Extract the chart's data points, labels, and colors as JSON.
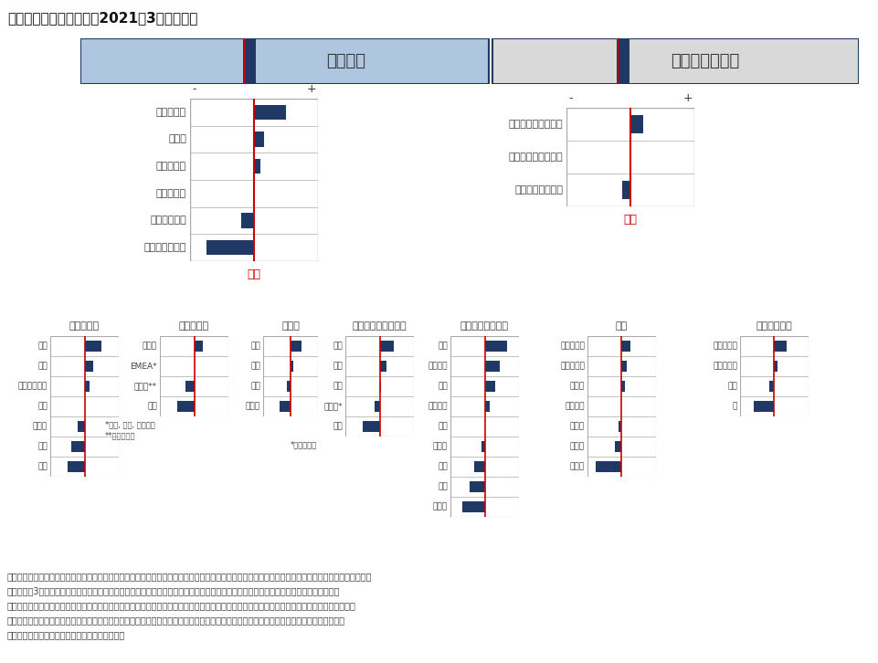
{
  "title": "資産クラスの選好順位（2021年3月末時点）",
  "growth_label": "グロース",
  "defensive_label": "ディフェンシブ",
  "neutral_label": "中立",
  "growth_items": [
    "新興国株式",
    "リート",
    "先進国株式",
    "新興国債券",
    "インフラ投資",
    "ハイイールド債"
  ],
  "growth_scores": [
    1.0,
    0.3,
    0.2,
    0.0,
    -0.4,
    -1.5
  ],
  "defensive_items": [
    "インフレヘッジ資産",
    "投資適格クレジット",
    "先進国ソブリン債"
  ],
  "defensive_scores": [
    0.4,
    0.0,
    -0.25
  ],
  "detail_sections": [
    {
      "title": "先進国株式",
      "items": [
        "日本",
        "欧州",
        "シンガポール",
        "英国",
        "カナダ",
        "豪州",
        "米国"
      ],
      "scores": [
        1.0,
        0.5,
        0.3,
        0.0,
        -0.4,
        -0.8,
        -1.0
      ],
      "notes": []
    },
    {
      "title": "新興国株式",
      "items": [
        "中南米",
        "EMEA*",
        "アジア**",
        "中国"
      ],
      "scores": [
        0.5,
        0.0,
        -0.5,
        -1.0
      ],
      "notes": [
        "*欧州, 中東, アフリカ",
        "**中国を除く"
      ]
    },
    {
      "title": "リート",
      "items": [
        "米国",
        "日本",
        "欧州",
        "アジア"
      ],
      "scores": [
        0.8,
        0.2,
        -0.3,
        -0.8
      ],
      "notes": []
    },
    {
      "title": "投資適格クレジット",
      "items": [
        "豪州",
        "欧州",
        "日本",
        "アジア*",
        "米国"
      ],
      "scores": [
        0.8,
        0.4,
        0.1,
        -0.3,
        -1.0
      ],
      "notes": [
        "*米ドル建て"
      ]
    },
    {
      "title": "先進国ソブリン債",
      "items": [
        "中国",
        "イタリア",
        "日本",
        "フランス",
        "豪州",
        "ドイツ",
        "米国",
        "英国",
        "カナダ"
      ],
      "scores": [
        1.3,
        0.9,
        0.6,
        0.3,
        0.0,
        -0.2,
        -0.6,
        -0.9,
        -1.3
      ],
      "notes": []
    },
    {
      "title": "通貨",
      "items": [
        "新興国通貨",
        "カナダドル",
        "豪ドル",
        "英ポンド",
        "米ドル",
        "ユーロ",
        "日本円"
      ],
      "scores": [
        0.5,
        0.3,
        0.2,
        0.0,
        -0.2,
        -0.4,
        -1.5
      ],
      "notes": []
    },
    {
      "title": "コモディティ",
      "items": [
        "工業用金属",
        "エネルギー",
        "農業",
        "金"
      ],
      "scores": [
        0.7,
        0.2,
        -0.3,
        -1.2
      ],
      "notes": []
    }
  ],
  "footnote_line1": "注）上記のアセットクラスおよびセクターの選好順位とスコアは、マルチアセット・チームの現在の投資見解を反映したものです。リサーチ・フレーム",
  "footnote_line2": "ワークは　3　つの段階の分析に分かれています。スコアは、各資産に対する同チームの相対的見方（各資産が属する資産クラスの他の資",
  "footnote_line3": "産対比）を表しています。各資産クラス内のスコアは、コモディティを除き、平均すると中立となります。これらは投資リサーチまたは投資推奨",
  "footnote_line4": "助言に該当するものではありません。セクターや経済、市況トレンドに関する予見、予測または予想は、それらの将来の状況またはパフォー",
  "footnote_line5": "マンスを必ずしも示唆するものではありません。",
  "colors": {
    "growth_bg": "#aec6e0",
    "defensive_bg": "#d9d9d9",
    "header_border": "#1f3864",
    "bar_color": "#1f3864",
    "neutral_line": "#cc0000",
    "neutral_text": "#cc0000",
    "grid_line": "#aaaaaa",
    "text_color": "#404040",
    "white": "#ffffff",
    "bg": "#ffffff"
  }
}
